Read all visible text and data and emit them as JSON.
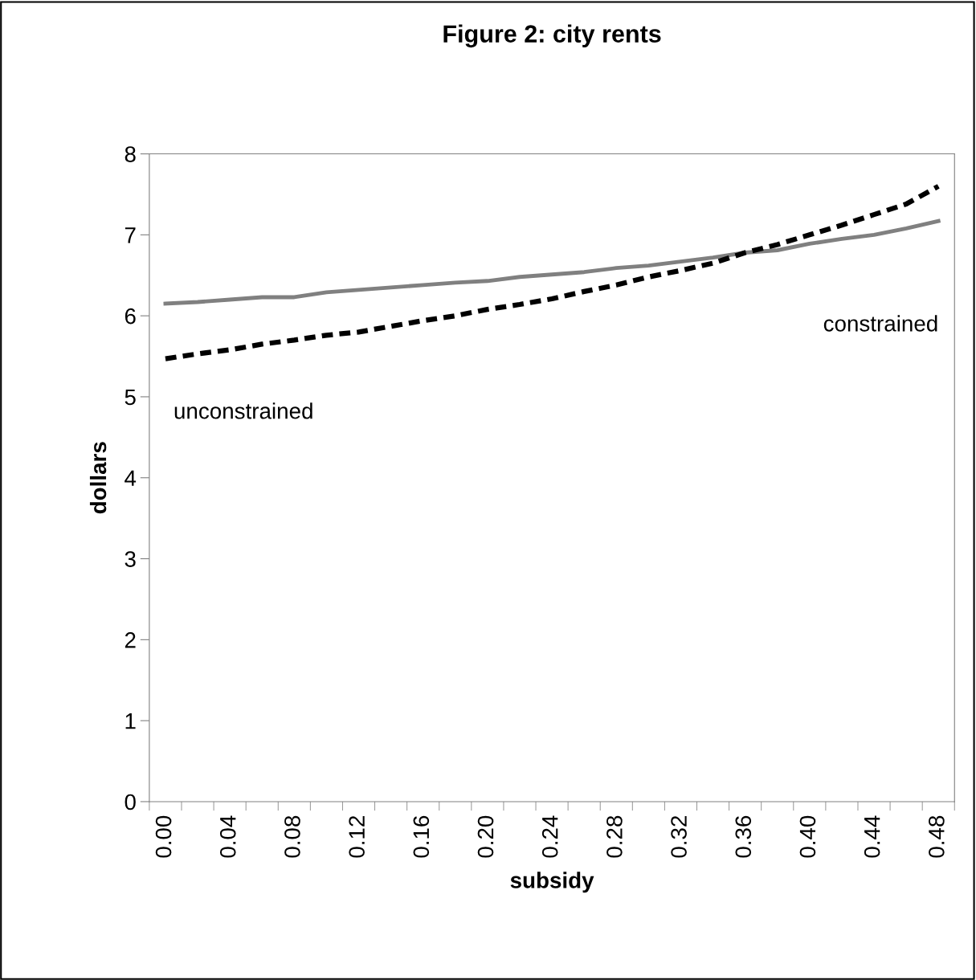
{
  "chart_data": {
    "type": "line",
    "title": "Figure 2: city rents",
    "xlabel": "subsidy",
    "ylabel": "dollars",
    "categories": [
      "0.00",
      null,
      "0.04",
      null,
      "0.08",
      null,
      "0.12",
      null,
      "0.16",
      null,
      "0.20",
      null,
      "0.24",
      null,
      "0.28",
      null,
      "0.32",
      null,
      "0.36",
      null,
      "0.40",
      null,
      "0.44",
      null,
      "0.48"
    ],
    "series": [
      {
        "color": "#808080",
        "line_style": "solid",
        "values": [
          6.15,
          6.17,
          6.2,
          6.23,
          6.23,
          6.29,
          6.32,
          6.35,
          6.38,
          6.41,
          6.43,
          6.48,
          6.51,
          6.54,
          6.59,
          6.62,
          6.67,
          6.72,
          6.78,
          6.81,
          6.89,
          6.95,
          7.0,
          7.08,
          7.17
        ]
      },
      {
        "color": "#000000",
        "line_style": "dashed",
        "values": [
          5.47,
          5.53,
          5.58,
          5.65,
          5.7,
          5.76,
          5.8,
          5.87,
          5.94,
          6.0,
          6.08,
          6.14,
          6.21,
          6.3,
          6.38,
          6.48,
          6.56,
          6.65,
          6.78,
          6.88,
          7.0,
          7.12,
          7.25,
          7.38,
          7.6
        ]
      }
    ],
    "ylim": [
      0,
      8
    ],
    "yticks": [
      0,
      1,
      2,
      3,
      4,
      5,
      6,
      7,
      8
    ],
    "grid": false,
    "legend": false,
    "marker": "none",
    "annotations": [
      "unconstrained",
      "constrained"
    ]
  }
}
